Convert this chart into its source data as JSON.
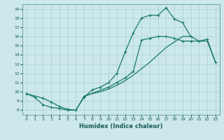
{
  "xlabel": "Humidex (Indice chaleur)",
  "bg_color": "#cce8ea",
  "grid_color": "#b0d4d8",
  "line_color": "#1a7a6e",
  "xlim": [
    -0.5,
    23.5
  ],
  "ylim": [
    7.5,
    19.5
  ],
  "xticks": [
    0,
    1,
    2,
    3,
    4,
    5,
    6,
    7,
    8,
    9,
    10,
    11,
    12,
    13,
    14,
    15,
    16,
    17,
    18,
    19,
    20,
    21,
    22,
    23
  ],
  "yticks": [
    8,
    9,
    10,
    11,
    12,
    13,
    14,
    15,
    16,
    17,
    18,
    19
  ],
  "curve1_x": [
    0,
    1,
    2,
    3,
    4,
    5,
    6,
    7,
    8,
    9,
    10,
    11,
    12,
    13,
    14,
    15,
    16,
    17,
    18,
    19,
    20
  ],
  "curve1_y": [
    9.8,
    9.4,
    8.6,
    8.3,
    8.2,
    8.0,
    8.0,
    9.4,
    10.2,
    10.5,
    11.0,
    12.0,
    14.3,
    16.4,
    18.0,
    18.3,
    18.3,
    19.1,
    17.9,
    17.5,
    16.0
  ],
  "curve2_x": [
    0,
    2,
    3,
    4,
    5,
    6,
    7,
    10,
    11,
    12,
    13,
    14,
    15,
    16,
    17,
    18,
    19,
    20,
    21,
    22,
    23
  ],
  "curve2_y": [
    9.8,
    9.3,
    8.9,
    8.4,
    8.1,
    8.0,
    9.5,
    10.5,
    11.0,
    11.5,
    12.2,
    15.6,
    15.8,
    16.0,
    16.0,
    15.8,
    15.5,
    15.5,
    15.5,
    15.7,
    13.2
  ],
  "curve3_x": [
    7,
    8,
    9,
    10,
    11,
    12,
    13,
    14,
    15,
    16,
    17,
    18,
    19,
    20,
    21,
    22,
    23
  ],
  "curve3_y": [
    9.5,
    9.8,
    10.0,
    10.3,
    10.7,
    11.2,
    11.8,
    12.5,
    13.2,
    14.0,
    14.8,
    15.4,
    16.0,
    16.0,
    15.5,
    15.5,
    13.2
  ]
}
